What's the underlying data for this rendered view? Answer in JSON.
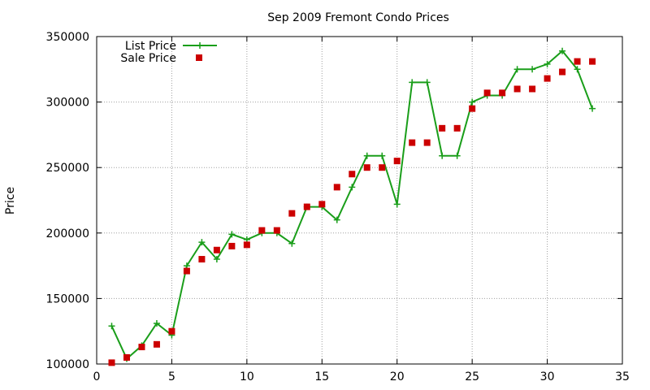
{
  "chart_data": {
    "type": "line",
    "title": "Sep 2009 Fremont Condo Prices",
    "xlabel": "",
    "ylabel": "Price",
    "xlim": [
      0,
      35
    ],
    "ylim": [
      100000,
      350000
    ],
    "x_ticks": [
      0,
      5,
      10,
      15,
      20,
      25,
      30,
      35
    ],
    "y_ticks": [
      100000,
      150000,
      200000,
      250000,
      300000,
      350000
    ],
    "x_tick_labels": [
      "0",
      "5",
      "10",
      "15",
      "20",
      "25",
      "30",
      "35"
    ],
    "y_tick_labels": [
      "100000",
      "150000",
      "200000",
      "250000",
      "300000",
      "350000"
    ],
    "grid": true,
    "legend_position": "top-left",
    "series": [
      {
        "name": "List Price",
        "style": "line-plus",
        "color": "#1a9e1a",
        "x": [
          1,
          2,
          3,
          4,
          5,
          6,
          7,
          8,
          9,
          10,
          11,
          12,
          13,
          14,
          15,
          16,
          17,
          18,
          19,
          20,
          21,
          22,
          23,
          24,
          25,
          26,
          27,
          28,
          29,
          30,
          31,
          32,
          33
        ],
        "values": [
          129000,
          104000,
          114000,
          131000,
          122000,
          175000,
          193000,
          180000,
          199000,
          195000,
          200000,
          200000,
          192000,
          220000,
          220000,
          210000,
          235000,
          259000,
          259000,
          222000,
          315000,
          315000,
          259000,
          259000,
          300000,
          305000,
          305000,
          325000,
          325000,
          329000,
          339000,
          325000,
          295000
        ]
      },
      {
        "name": "Sale Price",
        "style": "square",
        "color": "#cc0000",
        "x": [
          1,
          2,
          3,
          4,
          5,
          6,
          7,
          8,
          9,
          10,
          11,
          12,
          13,
          14,
          15,
          16,
          17,
          18,
          19,
          20,
          21,
          22,
          23,
          24,
          25,
          26,
          27,
          28,
          29,
          30,
          31,
          32,
          33
        ],
        "values": [
          101000,
          105000,
          113000,
          115000,
          125000,
          171000,
          180000,
          187000,
          190000,
          191000,
          202000,
          202000,
          215000,
          220000,
          222000,
          235000,
          245000,
          250000,
          250000,
          255000,
          269000,
          269000,
          280000,
          280000,
          295000,
          307000,
          307000,
          310000,
          310000,
          318000,
          323000,
          331000,
          331000
        ]
      }
    ]
  }
}
